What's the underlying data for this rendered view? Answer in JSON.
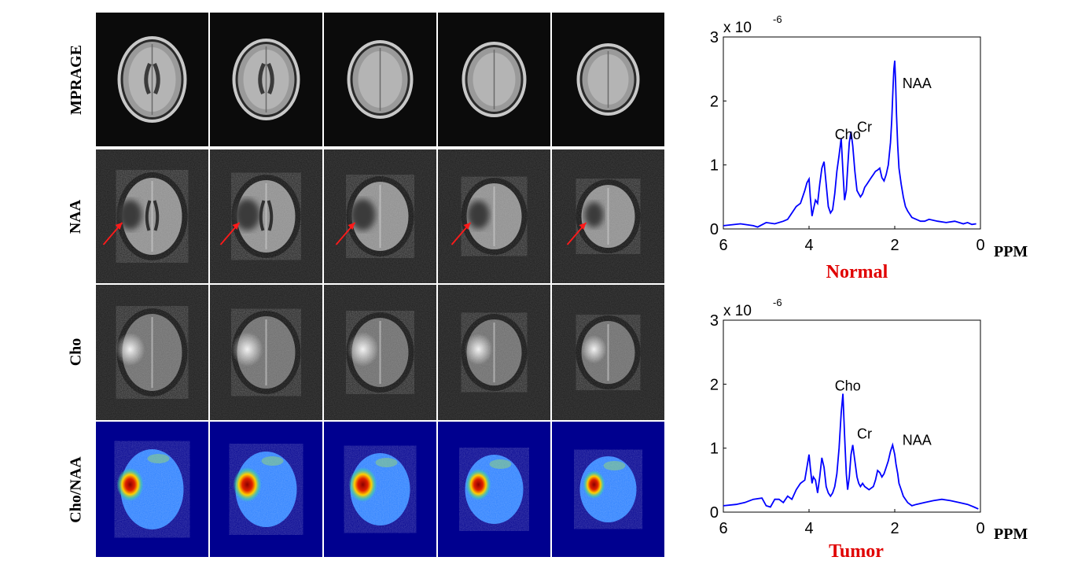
{
  "rows": [
    {
      "label": "MPRAGE",
      "kind": "mprage"
    },
    {
      "label": "NAA",
      "kind": "naa"
    },
    {
      "label": "Cho",
      "kind": "cho"
    },
    {
      "label": "Cho/NAA",
      "kind": "ratio"
    }
  ],
  "slices": 5,
  "lesion_arrow_color": "#ff1a1a",
  "colors": {
    "spectrum_line": "#0000ff",
    "title": "#e00000",
    "ratio_background": "#00008f"
  },
  "chart_data": [
    {
      "type": "line",
      "title": "Normal",
      "xlabel": "PPM",
      "ylabel": "",
      "xlim": [
        6,
        0
      ],
      "ylim": [
        0,
        3
      ],
      "y_scale_label": "x 10",
      "y_scale_exponent": "-6",
      "xticks": [
        6,
        4,
        2,
        0
      ],
      "yticks": [
        0,
        1,
        2,
        3
      ],
      "grid": false,
      "series": [
        {
          "x": [
            6.0,
            5.6,
            5.3,
            5.2,
            5.0,
            4.8,
            4.6,
            4.5,
            4.4,
            4.3,
            4.2,
            4.1,
            4.05,
            4.0,
            3.97,
            3.93,
            3.9,
            3.85,
            3.8,
            3.75,
            3.7,
            3.65,
            3.6,
            3.55,
            3.5,
            3.45,
            3.4,
            3.35,
            3.3,
            3.25,
            3.21,
            3.17,
            3.13,
            3.1,
            3.06,
            3.02,
            2.98,
            2.93,
            2.88,
            2.84,
            2.8,
            2.75,
            2.7,
            2.65,
            2.6,
            2.55,
            2.5,
            2.45,
            2.4,
            2.35,
            2.3,
            2.25,
            2.2,
            2.15,
            2.1,
            2.07,
            2.04,
            2.02,
            2.0,
            1.98,
            1.96,
            1.93,
            1.9,
            1.85,
            1.8,
            1.75,
            1.7,
            1.6,
            1.5,
            1.4,
            1.3,
            1.2,
            1.0,
            0.8,
            0.6,
            0.4,
            0.3,
            0.2,
            0.1
          ],
          "y": [
            0.05,
            0.08,
            0.05,
            0.03,
            0.1,
            0.08,
            0.12,
            0.15,
            0.25,
            0.35,
            0.4,
            0.6,
            0.72,
            0.78,
            0.5,
            0.2,
            0.3,
            0.45,
            0.4,
            0.7,
            0.95,
            1.05,
            0.7,
            0.35,
            0.25,
            0.3,
            0.55,
            0.9,
            1.15,
            1.42,
            0.9,
            0.45,
            0.6,
            0.95,
            1.35,
            1.52,
            1.3,
            0.9,
            0.6,
            0.55,
            0.5,
            0.55,
            0.65,
            0.7,
            0.75,
            0.8,
            0.85,
            0.9,
            0.92,
            0.95,
            0.8,
            0.75,
            0.85,
            1.0,
            1.35,
            1.7,
            2.2,
            2.5,
            2.63,
            2.3,
            1.8,
            1.3,
            0.95,
            0.7,
            0.5,
            0.35,
            0.28,
            0.18,
            0.15,
            0.12,
            0.12,
            0.15,
            0.12,
            0.1,
            0.12,
            0.08,
            0.1,
            0.07,
            0.08
          ]
        }
      ],
      "annotations": [
        {
          "text": "Cho",
          "x": 3.4,
          "y": 1.4
        },
        {
          "text": "Cr",
          "x": 2.88,
          "y": 1.52
        },
        {
          "text": "NAA",
          "x": 1.82,
          "y": 2.2
        }
      ]
    },
    {
      "type": "line",
      "title": "Tumor",
      "xlabel": "PPM",
      "ylabel": "",
      "xlim": [
        6,
        0
      ],
      "ylim": [
        0,
        3
      ],
      "y_scale_label": "x 10",
      "y_scale_exponent": "-6",
      "xticks": [
        6,
        4,
        2,
        0
      ],
      "yticks": [
        0,
        1,
        2,
        3
      ],
      "grid": false,
      "series": [
        {
          "x": [
            6.0,
            5.7,
            5.5,
            5.3,
            5.1,
            5.0,
            4.9,
            4.8,
            4.7,
            4.6,
            4.5,
            4.4,
            4.3,
            4.2,
            4.1,
            4.05,
            4.0,
            3.97,
            3.93,
            3.9,
            3.85,
            3.8,
            3.75,
            3.7,
            3.65,
            3.6,
            3.55,
            3.5,
            3.45,
            3.4,
            3.35,
            3.3,
            3.25,
            3.21,
            3.17,
            3.13,
            3.1,
            3.06,
            3.02,
            2.98,
            2.93,
            2.88,
            2.84,
            2.8,
            2.75,
            2.7,
            2.6,
            2.5,
            2.45,
            2.4,
            2.35,
            2.3,
            2.25,
            2.2,
            2.15,
            2.1,
            2.05,
            2.0,
            1.97,
            1.93,
            1.9,
            1.85,
            1.8,
            1.7,
            1.6,
            1.5,
            1.3,
            1.1,
            0.9,
            0.7,
            0.5,
            0.3,
            0.15,
            0.05
          ],
          "y": [
            0.1,
            0.12,
            0.15,
            0.2,
            0.22,
            0.1,
            0.08,
            0.2,
            0.2,
            0.15,
            0.25,
            0.2,
            0.35,
            0.45,
            0.5,
            0.7,
            0.9,
            0.7,
            0.45,
            0.55,
            0.5,
            0.3,
            0.55,
            0.85,
            0.7,
            0.4,
            0.3,
            0.25,
            0.3,
            0.4,
            0.6,
            1.0,
            1.55,
            1.85,
            1.2,
            0.6,
            0.35,
            0.55,
            0.9,
            1.05,
            0.8,
            0.55,
            0.45,
            0.4,
            0.45,
            0.4,
            0.35,
            0.4,
            0.5,
            0.65,
            0.62,
            0.55,
            0.6,
            0.7,
            0.8,
            0.95,
            1.05,
            0.9,
            0.75,
            0.6,
            0.45,
            0.35,
            0.25,
            0.15,
            0.1,
            0.12,
            0.15,
            0.18,
            0.2,
            0.18,
            0.15,
            0.12,
            0.08,
            0.05
          ]
        }
      ],
      "annotations": [
        {
          "text": "Cho",
          "x": 3.4,
          "y": 1.9
        },
        {
          "text": "Cr",
          "x": 2.88,
          "y": 1.15
        },
        {
          "text": "NAA",
          "x": 1.82,
          "y": 1.05
        }
      ]
    }
  ]
}
